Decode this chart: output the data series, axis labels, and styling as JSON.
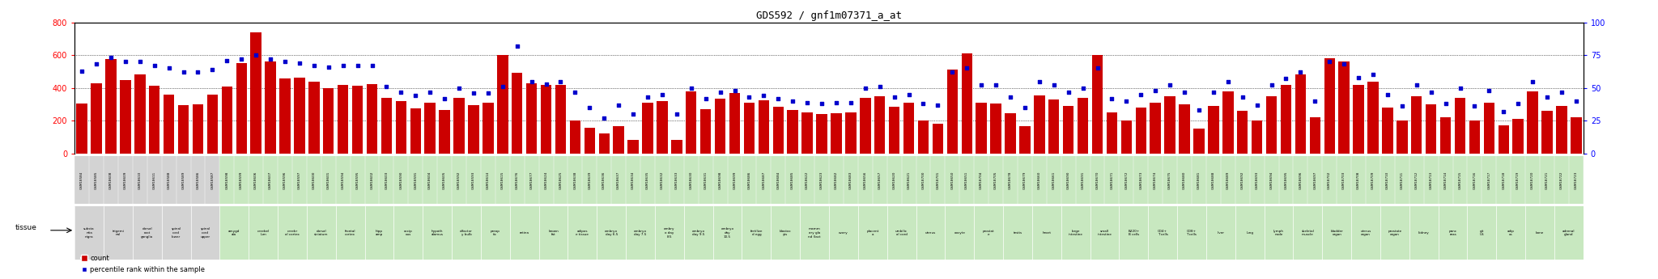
{
  "title": "GDS592 / gnf1m07371_a_at",
  "bar_color": "#cc0000",
  "dot_color": "#0000cc",
  "bar_values": [
    305,
    430,
    575,
    450,
    480,
    415,
    360,
    295,
    300,
    360,
    410,
    550,
    740,
    560,
    460,
    465,
    440,
    400,
    420,
    415,
    425,
    340,
    320,
    275,
    310,
    265,
    340,
    295,
    310,
    600,
    490,
    430,
    420,
    420,
    200,
    155,
    120,
    165,
    85,
    310,
    320,
    85,
    380,
    270,
    335,
    370,
    310,
    325,
    285,
    265,
    250,
    240,
    245,
    250,
    340,
    350,
    285,
    310,
    200,
    180,
    510,
    610,
    310,
    305,
    245,
    165,
    355,
    330,
    290,
    340,
    600,
    250,
    200,
    280,
    310,
    350,
    300,
    150,
    290,
    380,
    260,
    200,
    350,
    420,
    480,
    220,
    580,
    560,
    420,
    440,
    280,
    200,
    350,
    300,
    220,
    340,
    200,
    310,
    170,
    210,
    380,
    260,
    290,
    220
  ],
  "percentile_values": [
    63,
    68,
    73,
    70,
    70,
    67,
    65,
    62,
    62,
    64,
    71,
    72,
    75,
    72,
    70,
    69,
    67,
    66,
    67,
    67,
    67,
    51,
    47,
    44,
    47,
    42,
    50,
    46,
    46,
    51,
    82,
    55,
    53,
    55,
    47,
    35,
    27,
    37,
    30,
    43,
    45,
    30,
    50,
    42,
    47,
    48,
    43,
    44,
    42,
    40,
    39,
    38,
    39,
    39,
    50,
    51,
    43,
    45,
    38,
    37,
    62,
    65,
    52,
    52,
    43,
    35,
    55,
    52,
    47,
    50,
    65,
    42,
    40,
    45,
    48,
    52,
    47,
    33,
    47,
    55,
    43,
    37,
    52,
    57,
    62,
    40,
    70,
    68,
    58,
    60,
    45,
    36,
    52,
    47,
    38,
    50,
    36,
    48,
    32,
    38,
    55,
    43,
    47,
    40
  ],
  "samples": [
    "GSM18584",
    "GSM18585",
    "GSM18608",
    "GSM18609",
    "GSM18610",
    "GSM18611",
    "GSM18588",
    "GSM18589",
    "GSM18586",
    "GSM18587",
    "GSM18598",
    "GSM18599",
    "GSM18606",
    "GSM18607",
    "GSM18596",
    "GSM18597",
    "GSM18600",
    "GSM18601",
    "GSM18594",
    "GSM18595",
    "GSM18602",
    "GSM18603",
    "GSM18590",
    "GSM18591",
    "GSM18604",
    "GSM18605",
    "GSM18592",
    "GSM18593",
    "GSM18614",
    "GSM18615",
    "GSM18676",
    "GSM18677",
    "GSM18624",
    "GSM18625",
    "GSM18638",
    "GSM18639",
    "GSM18636",
    "GSM18637",
    "GSM18634",
    "GSM18635",
    "GSM18632",
    "GSM18633",
    "GSM18630",
    "GSM18631",
    "GSM18698",
    "GSM18699",
    "GSM18686",
    "GSM18687",
    "GSM18684",
    "GSM18685",
    "GSM18622",
    "GSM18623",
    "GSM18682",
    "GSM18683",
    "GSM18656",
    "GSM18657",
    "GSM18620",
    "GSM18621",
    "GSM18700",
    "GSM18701",
    "GSM18650",
    "GSM18651",
    "GSM18704",
    "GSM18705",
    "GSM18678",
    "GSM18679",
    "GSM18660",
    "GSM18661",
    "GSM18690",
    "GSM18691",
    "GSM18670",
    "GSM18671",
    "GSM18672",
    "GSM18673",
    "GSM18674",
    "GSM18675",
    "GSM18680",
    "GSM18681",
    "GSM18688",
    "GSM18689",
    "GSM18692",
    "GSM18693",
    "GSM18694",
    "GSM18695",
    "GSM18696",
    "GSM18697",
    "GSM18702",
    "GSM18703",
    "GSM18708",
    "GSM18709",
    "GSM18710",
    "GSM18711",
    "GSM18712",
    "GSM18713",
    "GSM18714",
    "GSM18715",
    "GSM18716",
    "GSM18717",
    "GSM18718",
    "GSM18719",
    "GSM18720",
    "GSM18721",
    "GSM18722",
    "GSM18723"
  ],
  "tissue_groups": [
    [
      0,
      1,
      "substa\nntia\nnigra",
      "#d3d3d3"
    ],
    [
      2,
      3,
      "trigemi\nnal",
      "#d3d3d3"
    ],
    [
      4,
      5,
      "dorsal\nroot\nganglia",
      "#d3d3d3"
    ],
    [
      6,
      7,
      "spinal\ncord\nlower",
      "#d3d3d3"
    ],
    [
      8,
      9,
      "spinal\ncord\nupper",
      "#d3d3d3"
    ],
    [
      10,
      11,
      "amygd\nala",
      "#c8e8c0"
    ],
    [
      12,
      13,
      "cerebel\nlum",
      "#c8e8c0"
    ],
    [
      14,
      15,
      "cerebr\nal cortex",
      "#c8e8c0"
    ],
    [
      16,
      17,
      "dorsal\nstriatum",
      "#c8e8c0"
    ],
    [
      18,
      19,
      "frontal\ncortex",
      "#c8e8c0"
    ],
    [
      20,
      21,
      "hipp\namp",
      "#c8e8c0"
    ],
    [
      22,
      23,
      "occip\nous",
      "#c8e8c0"
    ],
    [
      24,
      25,
      "hypoth\nalamus",
      "#c8e8c0"
    ],
    [
      26,
      27,
      "olfactor\ny bulb",
      "#c8e8c0"
    ],
    [
      28,
      29,
      "preop\ntic",
      "#c8e8c0"
    ],
    [
      30,
      31,
      "retina",
      "#c8e8c0"
    ],
    [
      32,
      33,
      "brown\nfat",
      "#c8e8c0"
    ],
    [
      34,
      35,
      "adipos\ne tissue",
      "#c8e8c0"
    ],
    [
      36,
      37,
      "embryo\nday 6.5",
      "#c8e8c0"
    ],
    [
      38,
      39,
      "embryo\nday 7.5",
      "#c8e8c0"
    ],
    [
      40,
      41,
      "embry\no day\n8.5",
      "#c8e8c0"
    ],
    [
      42,
      43,
      "embryo\nday 9.5",
      "#c8e8c0"
    ],
    [
      44,
      45,
      "embryo\nday\n10.5",
      "#c8e8c0"
    ],
    [
      46,
      47,
      "fertilize\nd egg",
      "#c8e8c0"
    ],
    [
      48,
      49,
      "blastoc\nyts",
      "#c8e8c0"
    ],
    [
      50,
      51,
      "mamm\nary gla\nnd (lact",
      "#c8e8c0"
    ],
    [
      52,
      53,
      "ovary",
      "#c8e8c0"
    ],
    [
      54,
      55,
      "placent\na",
      "#c8e8c0"
    ],
    [
      56,
      57,
      "umbilic\nal cord",
      "#c8e8c0"
    ],
    [
      58,
      59,
      "uterus",
      "#c8e8c0"
    ],
    [
      60,
      61,
      "oocyte",
      "#c8e8c0"
    ],
    [
      62,
      63,
      "prostat\ne",
      "#c8e8c0"
    ],
    [
      64,
      65,
      "testis",
      "#c8e8c0"
    ],
    [
      66,
      67,
      "heart",
      "#c8e8c0"
    ],
    [
      68,
      69,
      "large\nintestine",
      "#c8e8c0"
    ],
    [
      70,
      71,
      "small\nintestine",
      "#c8e8c0"
    ],
    [
      72,
      73,
      "B220+\nB cells",
      "#c8e8c0"
    ],
    [
      74,
      75,
      "CD4+\nT cells",
      "#c8e8c0"
    ],
    [
      76,
      77,
      "CD8+\nT cells",
      "#c8e8c0"
    ],
    [
      78,
      79,
      "liver",
      "#c8e8c0"
    ],
    [
      80,
      81,
      "lung",
      "#c8e8c0"
    ],
    [
      82,
      83,
      "lymph\nnode",
      "#c8e8c0"
    ],
    [
      84,
      85,
      "skeletal\nmuscle",
      "#c8e8c0"
    ],
    [
      86,
      87,
      "bladder\norgan",
      "#c8e8c0"
    ],
    [
      88,
      89,
      "uterus\norgan",
      "#c8e8c0"
    ],
    [
      90,
      91,
      "prostate\norgan",
      "#c8e8c0"
    ],
    [
      92,
      93,
      "kidney",
      "#c8e8c0"
    ],
    [
      94,
      95,
      "panc\nreas",
      "#c8e8c0"
    ],
    [
      96,
      97,
      "git\nUS",
      "#c8e8c0"
    ],
    [
      98,
      99,
      "adip\nos",
      "#c8e8c0"
    ],
    [
      100,
      101,
      "bone",
      "#c8e8c0"
    ],
    [
      102,
      103,
      "adrenal\ngland",
      "#c8e8c0"
    ]
  ],
  "gsm_gray_count": 10
}
